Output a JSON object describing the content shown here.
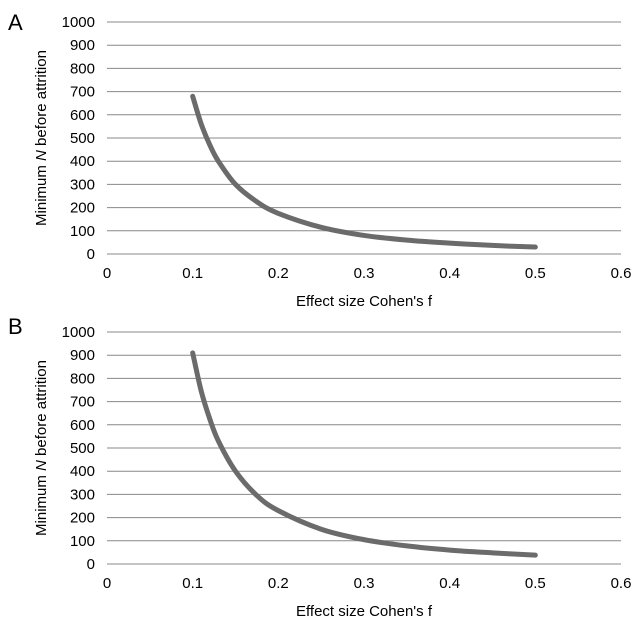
{
  "colors": {
    "curve": "#6b6b6b",
    "grid": "#888888"
  },
  "chart_data": [
    {
      "panel_label": "A",
      "type": "line",
      "xlabel": "Effect size Cohen's f",
      "ylabel": {
        "prefix": "Minimum ",
        "italic": "N",
        "suffix": " before attrition"
      },
      "xlim": [
        0,
        0.6
      ],
      "ylim": [
        0,
        1000
      ],
      "xticks": [
        "0",
        "0.1",
        "0.2",
        "0.3",
        "0.4",
        "0.5",
        "0.6"
      ],
      "yticks": [
        "0",
        "100",
        "200",
        "300",
        "400",
        "500",
        "600",
        "700",
        "800",
        "900",
        "1000"
      ],
      "grid": "horizontal",
      "series": [
        {
          "x": [
            0.1,
            0.11,
            0.12,
            0.13,
            0.15,
            0.175,
            0.2,
            0.25,
            0.3,
            0.35,
            0.4,
            0.45,
            0.5
          ],
          "y": [
            680,
            560,
            470,
            400,
            300,
            225,
            175,
            115,
            80,
            60,
            47,
            37,
            30
          ]
        }
      ]
    },
    {
      "panel_label": "B",
      "type": "line",
      "xlabel": "Effect size Cohen's f",
      "ylabel": {
        "prefix": "Minimum ",
        "italic": "N",
        "suffix": " before attrition"
      },
      "xlim": [
        0,
        0.6
      ],
      "ylim": [
        0,
        1000
      ],
      "xticks": [
        "0",
        "0.1",
        "0.2",
        "0.3",
        "0.4",
        "0.5",
        "0.6"
      ],
      "yticks": [
        "0",
        "100",
        "200",
        "300",
        "400",
        "500",
        "600",
        "700",
        "800",
        "900",
        "1000"
      ],
      "grid": "horizontal",
      "series": [
        {
          "x": [
            0.1,
            0.11,
            0.12,
            0.13,
            0.15,
            0.175,
            0.2,
            0.25,
            0.3,
            0.35,
            0.4,
            0.45,
            0.5
          ],
          "y": [
            910,
            745,
            625,
            530,
            400,
            295,
            230,
            150,
            105,
            78,
            60,
            48,
            38
          ]
        }
      ]
    }
  ]
}
